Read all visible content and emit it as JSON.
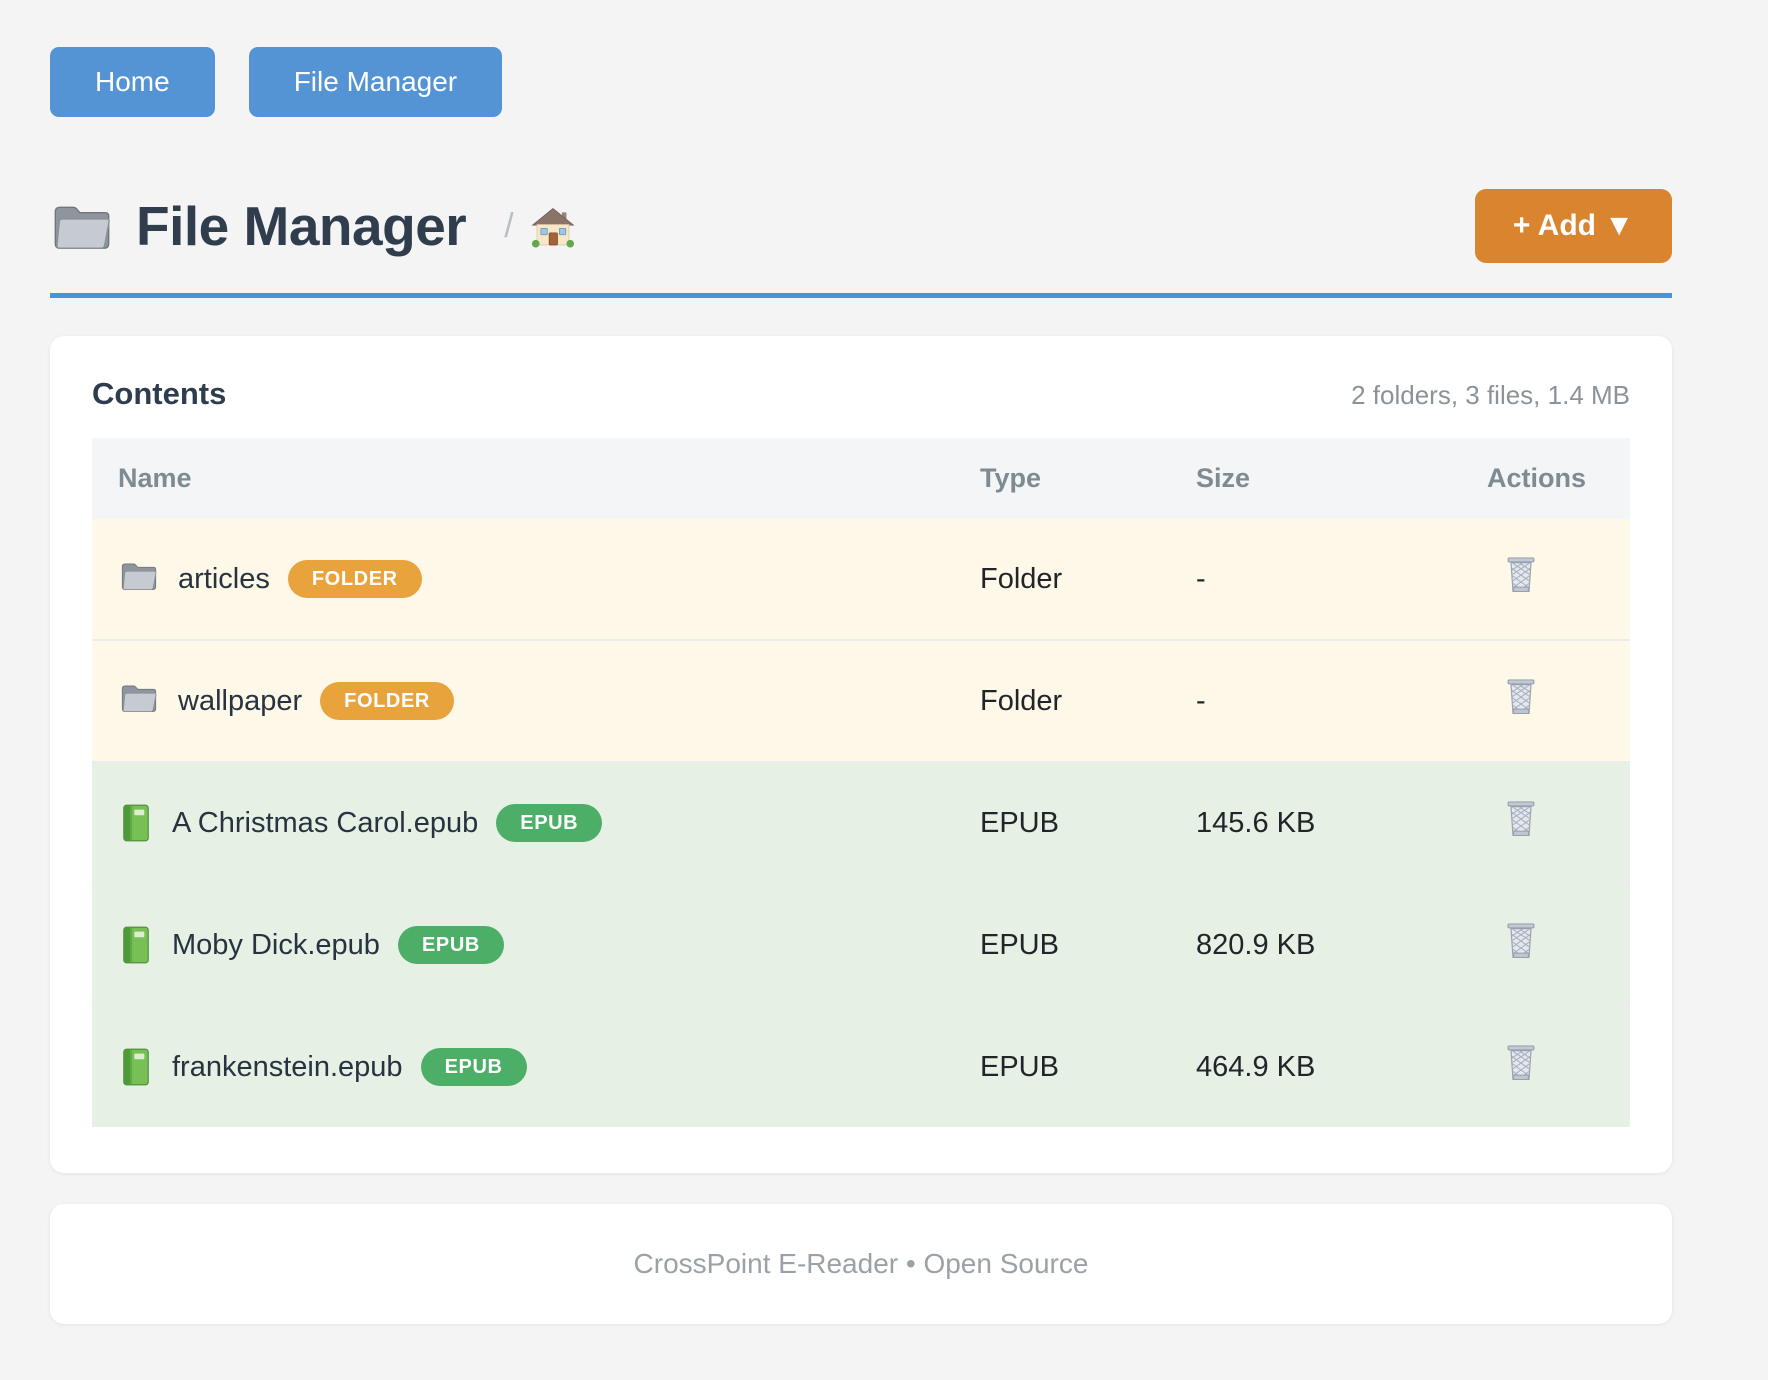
{
  "nav": {
    "buttons": [
      {
        "label": "Home"
      },
      {
        "label": "File Manager"
      }
    ]
  },
  "header": {
    "title": "File Manager",
    "title_icon": "folder-icon",
    "breadcrumb_separator": "/",
    "breadcrumb_home_icon": "house-icon",
    "add_button_label": "+ Add ▼"
  },
  "contents": {
    "heading": "Contents",
    "summary": "2 folders, 3 files, 1.4 MB",
    "columns": [
      "Name",
      "Type",
      "Size",
      "Actions"
    ],
    "action_icon": "trash-icon",
    "rows": [
      {
        "kind": "folder",
        "icon": "folder-icon",
        "name": "articles",
        "badge": "FOLDER",
        "type": "Folder",
        "size": "-"
      },
      {
        "kind": "folder",
        "icon": "folder-icon",
        "name": "wallpaper",
        "badge": "FOLDER",
        "type": "Folder",
        "size": "-"
      },
      {
        "kind": "epub",
        "icon": "book-icon",
        "name": "A Christmas Carol.epub",
        "badge": "EPUB",
        "type": "EPUB",
        "size": "145.6 KB"
      },
      {
        "kind": "epub",
        "icon": "book-icon",
        "name": "Moby Dick.epub",
        "badge": "EPUB",
        "type": "EPUB",
        "size": "820.9 KB"
      },
      {
        "kind": "epub",
        "icon": "book-icon",
        "name": "frankenstein.epub",
        "badge": "EPUB",
        "type": "EPUB",
        "size": "464.9 KB"
      }
    ]
  },
  "footer": {
    "text": "CrossPoint E-Reader • Open Source"
  },
  "colors": {
    "nav_button": "#5494d4",
    "title_rule": "#4b92d7",
    "add_button": "#d9842e",
    "folder_badge": "#e8a33d",
    "epub_badge": "#4cae67",
    "folder_row_bg": "#fdf8e8",
    "epub_row_bg": "#e6f0e5",
    "page_bg": "#f4f4f5"
  }
}
